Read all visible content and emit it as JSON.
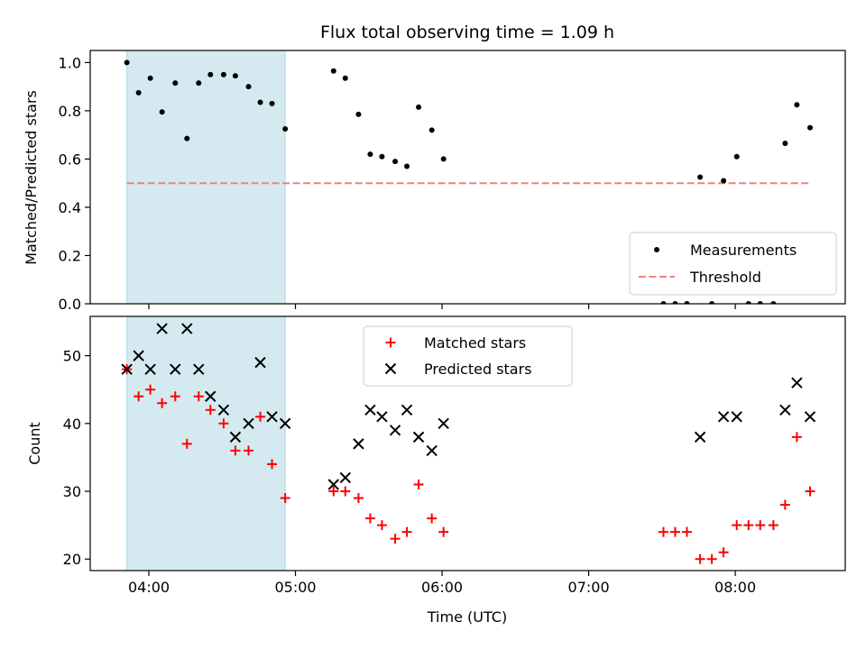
{
  "chart_data": [
    {
      "type": "scatter",
      "title": "Flux total observing time = 1.09 h",
      "ylabel": "Matched/Predicted stars",
      "xlabel": "",
      "x_unit": "hours UTC",
      "xlim": [
        3.6,
        8.75
      ],
      "ylim": [
        0,
        1.05
      ],
      "x_ticks": [
        4,
        5,
        6,
        7,
        8
      ],
      "y_ticks": [
        0.0,
        0.2,
        0.4,
        0.6,
        0.8,
        1.0
      ],
      "y_tick_labels": [
        "0.0",
        "0.2",
        "0.4",
        "0.6",
        "0.8",
        "1.0"
      ],
      "shaded_x_range": [
        3.85,
        4.93
      ],
      "shade_color": "#d4eaf0",
      "threshold": {
        "name": "Threshold",
        "y": 0.5,
        "x_range": [
          3.85,
          8.5
        ],
        "color": "#f08080"
      },
      "series": [
        {
          "name": "Measurements",
          "color": "#000000",
          "x": [
            3.85,
            3.93,
            4.01,
            4.09,
            4.18,
            4.26,
            4.34,
            4.42,
            4.51,
            4.59,
            4.68,
            4.76,
            4.84,
            4.93,
            5.26,
            5.34,
            5.43,
            5.51,
            5.59,
            5.68,
            5.76,
            5.84,
            5.93,
            6.01,
            7.51,
            7.59,
            7.67,
            7.76,
            7.84,
            7.92,
            8.01,
            8.09,
            8.17,
            8.26,
            8.34,
            8.42,
            8.51
          ],
          "y": [
            1.0,
            0.875,
            0.935,
            0.795,
            0.915,
            0.685,
            0.915,
            0.95,
            0.95,
            0.945,
            0.9,
            0.835,
            0.83,
            0.725,
            0.965,
            0.935,
            0.785,
            0.62,
            0.61,
            0.59,
            0.57,
            0.815,
            0.72,
            0.6,
            0.0,
            0.0,
            0.0,
            0.525,
            0.0,
            0.51,
            0.61,
            0.0,
            0.0,
            0.0,
            0.665,
            0.825,
            0.73
          ]
        }
      ],
      "legend": {
        "placement": "lower-right",
        "entries": [
          "Measurements",
          "Threshold"
        ]
      }
    },
    {
      "type": "scatter",
      "title": "",
      "ylabel": "Count",
      "xlabel": "Time (UTC)",
      "xlim": [
        3.6,
        8.75
      ],
      "ylim": [
        18.3,
        55.8
      ],
      "x_ticks": [
        4,
        5,
        6,
        7,
        8
      ],
      "x_tick_labels": [
        "04:00",
        "05:00",
        "06:00",
        "07:00",
        "08:00"
      ],
      "y_ticks": [
        20,
        30,
        40,
        50
      ],
      "y_tick_labels": [
        "20",
        "30",
        "40",
        "50"
      ],
      "shaded_x_range": [
        3.85,
        4.93
      ],
      "shade_color": "#d4eaf0",
      "series": [
        {
          "name": "Matched stars",
          "marker": "+",
          "color": "#ff0000",
          "x": [
            3.85,
            3.93,
            4.01,
            4.09,
            4.18,
            4.26,
            4.34,
            4.42,
            4.51,
            4.59,
            4.68,
            4.76,
            4.84,
            4.93,
            5.26,
            5.34,
            5.43,
            5.51,
            5.59,
            5.68,
            5.76,
            5.84,
            5.93,
            6.01,
            7.51,
            7.59,
            7.67,
            7.76,
            7.84,
            7.92,
            8.01,
            8.09,
            8.17,
            8.26,
            8.34,
            8.42,
            8.51
          ],
          "y": [
            48,
            44,
            45,
            43,
            44,
            37,
            44,
            42,
            40,
            36,
            36,
            41,
            34,
            29,
            30,
            30,
            29,
            26,
            25,
            23,
            24,
            31,
            26,
            24,
            24,
            24,
            24,
            20,
            20,
            21,
            25,
            25,
            25,
            25,
            28,
            38,
            30
          ]
        },
        {
          "name": "Predicted stars",
          "marker": "x",
          "color": "#000000",
          "x": [
            3.85,
            3.93,
            4.01,
            4.09,
            4.18,
            4.26,
            4.34,
            4.42,
            4.51,
            4.59,
            4.68,
            4.76,
            4.84,
            4.93,
            5.26,
            5.34,
            5.43,
            5.51,
            5.59,
            5.68,
            5.76,
            5.84,
            5.93,
            6.01,
            7.76,
            7.92,
            8.01,
            8.34,
            8.42,
            8.51
          ],
          "y": [
            48,
            50,
            48,
            54,
            48,
            54,
            48,
            44,
            42,
            38,
            40,
            49,
            41,
            40,
            31,
            32,
            37,
            42,
            41,
            39,
            42,
            38,
            36,
            40,
            38,
            41,
            41,
            42,
            46,
            41
          ]
        }
      ],
      "legend": {
        "placement": "upper-center",
        "entries": [
          "Matched stars",
          "Predicted stars"
        ]
      }
    }
  ]
}
